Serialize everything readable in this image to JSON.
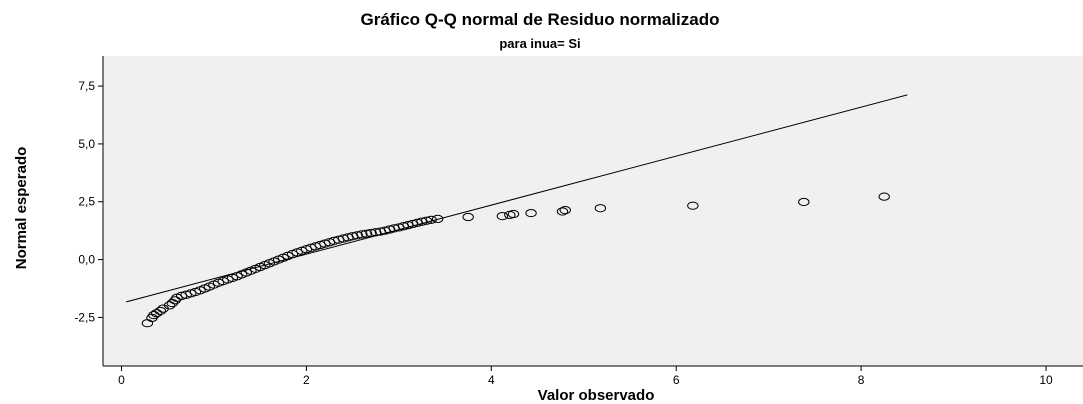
{
  "chart_data": {
    "type": "scatter",
    "title": "Gráfico Q-Q normal de Residuo normalizado",
    "subtitle": "para inua= Si",
    "xlabel": "Valor observado",
    "ylabel": "Normal esperado",
    "xlim": [
      -0.2,
      10.4
    ],
    "ylim": [
      -4.6,
      8.8
    ],
    "x_ticks": [
      0,
      2,
      4,
      6,
      8,
      10
    ],
    "x_tick_labels": [
      "0",
      "2",
      "4",
      "6",
      "8",
      "10"
    ],
    "y_ticks": [
      -2.5,
      0,
      2.5,
      5,
      7.5
    ],
    "y_tick_labels": [
      "-2,5",
      "0,0",
      "2,5",
      "5,0",
      "7,5"
    ],
    "grid": false,
    "reference_line": {
      "x": [
        0.05,
        8.5
      ],
      "y": [
        -1.83,
        7.12
      ]
    },
    "marker": "open-circle",
    "colors": {
      "plot_background": "#f0f0f0",
      "marker": "#000000",
      "line": "#000000"
    },
    "points": [
      {
        "x": 0.28,
        "y": -2.75
      },
      {
        "x": 0.33,
        "y": -2.52
      },
      {
        "x": 0.35,
        "y": -2.4
      },
      {
        "x": 0.38,
        "y": -2.32
      },
      {
        "x": 0.42,
        "y": -2.22
      },
      {
        "x": 0.45,
        "y": -2.12
      },
      {
        "x": 0.52,
        "y": -1.98
      },
      {
        "x": 0.55,
        "y": -1.88
      },
      {
        "x": 0.58,
        "y": -1.76
      },
      {
        "x": 0.6,
        "y": -1.65
      },
      {
        "x": 0.65,
        "y": -1.57
      },
      {
        "x": 0.7,
        "y": -1.52
      },
      {
        "x": 0.75,
        "y": -1.46
      },
      {
        "x": 0.8,
        "y": -1.4
      },
      {
        "x": 0.85,
        "y": -1.33
      },
      {
        "x": 0.9,
        "y": -1.25
      },
      {
        "x": 0.95,
        "y": -1.17
      },
      {
        "x": 1.0,
        "y": -1.08
      },
      {
        "x": 1.05,
        "y": -1.0
      },
      {
        "x": 1.1,
        "y": -0.93
      },
      {
        "x": 1.15,
        "y": -0.86
      },
      {
        "x": 1.2,
        "y": -0.79
      },
      {
        "x": 1.25,
        "y": -0.72
      },
      {
        "x": 1.3,
        "y": -0.64
      },
      {
        "x": 1.35,
        "y": -0.56
      },
      {
        "x": 1.4,
        "y": -0.48
      },
      {
        "x": 1.45,
        "y": -0.4
      },
      {
        "x": 1.5,
        "y": -0.32
      },
      {
        "x": 1.55,
        "y": -0.24
      },
      {
        "x": 1.6,
        "y": -0.16
      },
      {
        "x": 1.65,
        "y": -0.08
      },
      {
        "x": 1.7,
        "y": 0.0
      },
      {
        "x": 1.75,
        "y": 0.08
      },
      {
        "x": 1.8,
        "y": 0.16
      },
      {
        "x": 1.85,
        "y": 0.24
      },
      {
        "x": 1.9,
        "y": 0.31
      },
      {
        "x": 1.95,
        "y": 0.38
      },
      {
        "x": 2.0,
        "y": 0.45
      },
      {
        "x": 2.05,
        "y": 0.51
      },
      {
        "x": 2.1,
        "y": 0.57
      },
      {
        "x": 2.15,
        "y": 0.63
      },
      {
        "x": 2.2,
        "y": 0.69
      },
      {
        "x": 2.25,
        "y": 0.75
      },
      {
        "x": 2.3,
        "y": 0.81
      },
      {
        "x": 2.35,
        "y": 0.86
      },
      {
        "x": 2.4,
        "y": 0.91
      },
      {
        "x": 2.45,
        "y": 0.96
      },
      {
        "x": 2.5,
        "y": 1.01
      },
      {
        "x": 2.55,
        "y": 1.05
      },
      {
        "x": 2.6,
        "y": 1.09
      },
      {
        "x": 2.65,
        "y": 1.12
      },
      {
        "x": 2.7,
        "y": 1.15
      },
      {
        "x": 2.75,
        "y": 1.18
      },
      {
        "x": 2.8,
        "y": 1.21
      },
      {
        "x": 2.85,
        "y": 1.25
      },
      {
        "x": 2.9,
        "y": 1.3
      },
      {
        "x": 2.95,
        "y": 1.35
      },
      {
        "x": 3.0,
        "y": 1.39
      },
      {
        "x": 3.05,
        "y": 1.44
      },
      {
        "x": 3.1,
        "y": 1.49
      },
      {
        "x": 3.15,
        "y": 1.54
      },
      {
        "x": 3.2,
        "y": 1.59
      },
      {
        "x": 3.25,
        "y": 1.64
      },
      {
        "x": 3.3,
        "y": 1.68
      },
      {
        "x": 3.35,
        "y": 1.72
      },
      {
        "x": 3.42,
        "y": 1.76
      },
      {
        "x": 3.75,
        "y": 1.84
      },
      {
        "x": 4.12,
        "y": 1.88
      },
      {
        "x": 4.2,
        "y": 1.93
      },
      {
        "x": 4.24,
        "y": 1.97
      },
      {
        "x": 4.43,
        "y": 2.01
      },
      {
        "x": 4.77,
        "y": 2.08
      },
      {
        "x": 4.8,
        "y": 2.14
      },
      {
        "x": 5.18,
        "y": 2.22
      },
      {
        "x": 6.18,
        "y": 2.33
      },
      {
        "x": 7.38,
        "y": 2.49
      },
      {
        "x": 8.25,
        "y": 2.72
      }
    ]
  }
}
